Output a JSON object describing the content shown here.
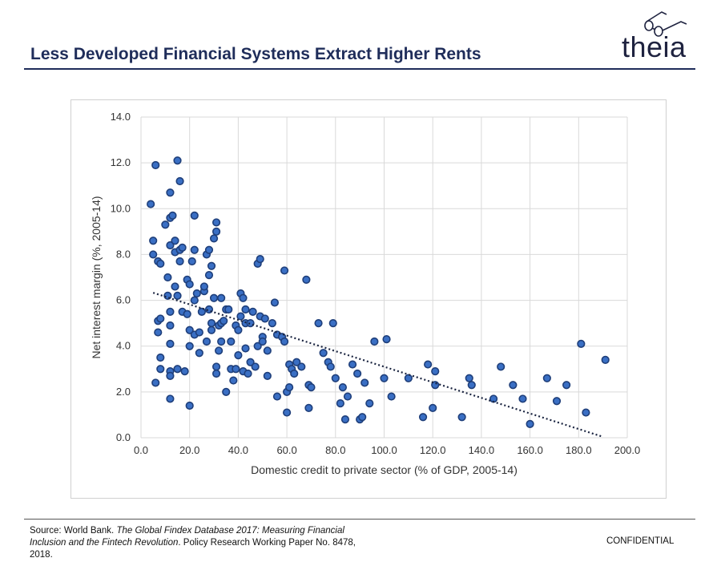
{
  "header": {
    "title": "Less Developed Financial Systems Extract Higher Rents",
    "logo_text": "theia"
  },
  "footer": {
    "source_prefix": "Source: World Bank. ",
    "source_italic": "The Global Findex Database 2017: Measuring Financial Inclusion and the Fintech Revolution",
    "source_suffix": ". Policy Research Working Paper No. 8478, 2018.",
    "confidential": "CONFIDENTIAL"
  },
  "colors": {
    "title": "#1f2d5a",
    "point_fill": "#3a6fc4",
    "point_stroke": "#1f3f7a",
    "trend": "#1a2440",
    "grid": "#d9d9d9"
  },
  "chart_data": {
    "type": "scatter",
    "xlabel": "Domestic credit to private sector (% of GDP, 2005-14)",
    "ylabel": "Net interest margin (%, 2005-14)",
    "xlim": [
      0,
      200
    ],
    "ylim": [
      0,
      14
    ],
    "xticks": [
      "0.0",
      "20.0",
      "40.0",
      "60.0",
      "80.0",
      "100.0",
      "120.0",
      "140.0",
      "160.0",
      "180.0",
      "200.0"
    ],
    "yticks": [
      "0.0",
      "2.0",
      "4.0",
      "6.0",
      "8.0",
      "10.0",
      "12.0",
      "14.0"
    ],
    "grid": true,
    "trendline": {
      "style": "dotted",
      "x": [
        5,
        190
      ],
      "y": [
        6.33,
        0.04
      ]
    },
    "points": [
      [
        4,
        10.2
      ],
      [
        5,
        8.6
      ],
      [
        5,
        8.0
      ],
      [
        6,
        11.9
      ],
      [
        6,
        2.4
      ],
      [
        7,
        7.7
      ],
      [
        7,
        5.1
      ],
      [
        7,
        4.6
      ],
      [
        8,
        7.6
      ],
      [
        8,
        5.2
      ],
      [
        8,
        3.5
      ],
      [
        8,
        3.0
      ],
      [
        10,
        9.3
      ],
      [
        11,
        7.0
      ],
      [
        11,
        6.2
      ],
      [
        12,
        10.7
      ],
      [
        12,
        9.6
      ],
      [
        12,
        8.4
      ],
      [
        12,
        5.5
      ],
      [
        12,
        4.9
      ],
      [
        12,
        4.1
      ],
      [
        12,
        2.9
      ],
      [
        12,
        2.7
      ],
      [
        12,
        1.7
      ],
      [
        13,
        9.7
      ],
      [
        14,
        8.6
      ],
      [
        14,
        8.1
      ],
      [
        14,
        6.6
      ],
      [
        15,
        12.1
      ],
      [
        15,
        6.2
      ],
      [
        15,
        3.0
      ],
      [
        16,
        11.2
      ],
      [
        16,
        7.7
      ],
      [
        16,
        8.2
      ],
      [
        17,
        8.3
      ],
      [
        17,
        5.5
      ],
      [
        18,
        2.9
      ],
      [
        19,
        6.9
      ],
      [
        19,
        5.4
      ],
      [
        20,
        1.4
      ],
      [
        20,
        6.7
      ],
      [
        20,
        4.7
      ],
      [
        20,
        4.0
      ],
      [
        21,
        7.7
      ],
      [
        22,
        8.2
      ],
      [
        22,
        9.7
      ],
      [
        22,
        6.0
      ],
      [
        22,
        4.5
      ],
      [
        23,
        6.3
      ],
      [
        24,
        4.6
      ],
      [
        24,
        3.7
      ],
      [
        25,
        5.5
      ],
      [
        26,
        6.4
      ],
      [
        26,
        6.6
      ],
      [
        27,
        4.2
      ],
      [
        27,
        8.0
      ],
      [
        28,
        8.2
      ],
      [
        28,
        5.6
      ],
      [
        28,
        7.1
      ],
      [
        29,
        5.0
      ],
      [
        29,
        4.7
      ],
      [
        29,
        7.5
      ],
      [
        30,
        6.1
      ],
      [
        30,
        8.7
      ],
      [
        31,
        9.0
      ],
      [
        31,
        9.4
      ],
      [
        31,
        3.1
      ],
      [
        31,
        2.8
      ],
      [
        32,
        4.9
      ],
      [
        32,
        3.8
      ],
      [
        33,
        5.0
      ],
      [
        33,
        4.2
      ],
      [
        33,
        6.1
      ],
      [
        34,
        5.1
      ],
      [
        35,
        2.0
      ],
      [
        35,
        5.6
      ],
      [
        36,
        5.6
      ],
      [
        37,
        4.2
      ],
      [
        37,
        3.0
      ],
      [
        38,
        2.5
      ],
      [
        39,
        3.0
      ],
      [
        39,
        4.9
      ],
      [
        40,
        4.7
      ],
      [
        40,
        3.6
      ],
      [
        41,
        6.3
      ],
      [
        41,
        5.3
      ],
      [
        42,
        2.9
      ],
      [
        42,
        6.1
      ],
      [
        43,
        5.0
      ],
      [
        43,
        5.6
      ],
      [
        43,
        3.9
      ],
      [
        44,
        2.8
      ],
      [
        45,
        3.3
      ],
      [
        45,
        5.0
      ],
      [
        46,
        5.5
      ],
      [
        47,
        3.1
      ],
      [
        48,
        7.6
      ],
      [
        48,
        4.0
      ],
      [
        49,
        7.8
      ],
      [
        49,
        5.3
      ],
      [
        50,
        4.4
      ],
      [
        50,
        4.2
      ],
      [
        51,
        5.2
      ],
      [
        52,
        3.8
      ],
      [
        52,
        2.7
      ],
      [
        54,
        5.0
      ],
      [
        55,
        5.9
      ],
      [
        56,
        1.8
      ],
      [
        56,
        4.5
      ],
      [
        58,
        4.4
      ],
      [
        59,
        4.2
      ],
      [
        59,
        7.3
      ],
      [
        60,
        1.1
      ],
      [
        60,
        2.0
      ],
      [
        61,
        2.2
      ],
      [
        61,
        3.2
      ],
      [
        62,
        3.0
      ],
      [
        63,
        2.8
      ],
      [
        64,
        3.3
      ],
      [
        66,
        3.1
      ],
      [
        68,
        6.9
      ],
      [
        69,
        2.3
      ],
      [
        69,
        1.3
      ],
      [
        70,
        2.2
      ],
      [
        73,
        5.0
      ],
      [
        75,
        3.7
      ],
      [
        77,
        3.3
      ],
      [
        78,
        3.1
      ],
      [
        79,
        5.0
      ],
      [
        80,
        2.6
      ],
      [
        82,
        1.5
      ],
      [
        83,
        2.2
      ],
      [
        84,
        0.8
      ],
      [
        85,
        1.8
      ],
      [
        87,
        3.2
      ],
      [
        89,
        2.8
      ],
      [
        90,
        0.8
      ],
      [
        91,
        0.9
      ],
      [
        92,
        2.4
      ],
      [
        94,
        1.5
      ],
      [
        96,
        4.2
      ],
      [
        100,
        2.6
      ],
      [
        101,
        4.3
      ],
      [
        103,
        1.8
      ],
      [
        110,
        2.6
      ],
      [
        116,
        0.9
      ],
      [
        118,
        3.2
      ],
      [
        120,
        1.3
      ],
      [
        121,
        2.3
      ],
      [
        121,
        2.9
      ],
      [
        132,
        0.9
      ],
      [
        135,
        2.6
      ],
      [
        136,
        2.3
      ],
      [
        145,
        1.7
      ],
      [
        148,
        3.1
      ],
      [
        153,
        2.3
      ],
      [
        157,
        1.7
      ],
      [
        160,
        0.6
      ],
      [
        167,
        2.6
      ],
      [
        171,
        1.6
      ],
      [
        175,
        2.3
      ],
      [
        181,
        4.1
      ],
      [
        183,
        1.1
      ],
      [
        191,
        3.4
      ]
    ]
  }
}
